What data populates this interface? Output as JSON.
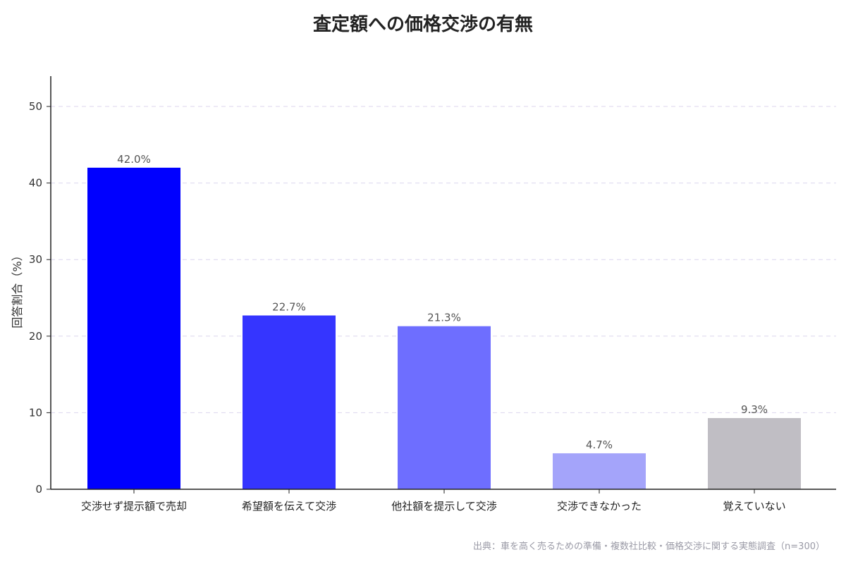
{
  "chart_data": {
    "type": "bar",
    "title": "査定額への価格交渉の有無",
    "ylabel": "回答割合（%）",
    "xlabel": "",
    "categories": [
      "交渉せず提示額で売却",
      "希望額を伝えて交渉",
      "他社額を提示して交渉",
      "交渉できなかった",
      "覚えていない"
    ],
    "values": [
      42.0,
      22.7,
      21.3,
      4.7,
      9.3
    ],
    "data_labels": [
      "42.0%",
      "22.7%",
      "21.3%",
      "4.7%",
      "9.3%"
    ],
    "colors": [
      "#0000ff",
      "#3535ff",
      "#6e6eff",
      "#a4a4fa",
      "#c0bec4"
    ],
    "ylim": [
      0,
      53.5
    ],
    "yticks": [
      0,
      10,
      20,
      30,
      40,
      50
    ],
    "grid": "horizontal-dashed",
    "legend": "none"
  },
  "source": "出典：車を高く売るための準備・複数社比較・価格交渉に関する実態調査（n=300）"
}
